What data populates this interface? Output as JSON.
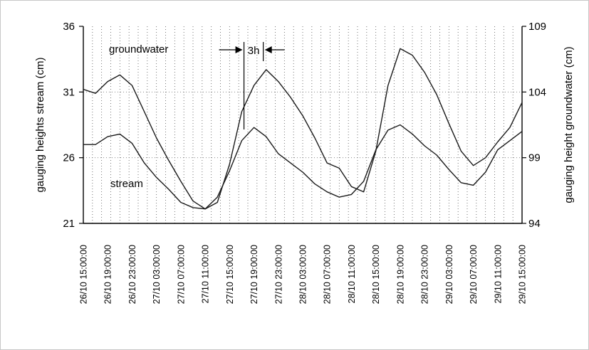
{
  "chart_data": {
    "type": "line",
    "title": "",
    "ylabel": "gauging heights stream (cm)",
    "ylabel_right": "gauging height groundwater (cm)",
    "ylim": [
      21,
      36
    ],
    "yticks": [
      "21",
      "26",
      "31",
      "36"
    ],
    "ylim_right": [
      94,
      109
    ],
    "yticks_right": [
      "94",
      "99",
      "104",
      "109"
    ],
    "xlim": [
      0,
      72
    ],
    "x_categories": [
      "26/10 15:00:00",
      "26/10 19:00:00",
      "26/10 23:00:00",
      "27/10 03:00:00",
      "27/10 07:00:00",
      "27/10 11:00:00",
      "27/10 15:00:00",
      "27/10 19:00:00",
      "27/10 23:00:00",
      "28/10 03:00:00",
      "28/10 07:00:00",
      "28/10 11:00:00",
      "28/10 15:00:00",
      "28/10 19:00:00",
      "28/10 23:00:00",
      "29/10 03:00:00",
      "29/10 07:00:00",
      "29/10 11:00:00",
      "29/10 15:00:00"
    ],
    "grid": "vertical dotted, horizontal dotted at 26 and 31",
    "annotation": "3h",
    "series": [
      {
        "name": "groundwater",
        "axis": "right",
        "x": [
          0,
          2,
          4,
          6,
          8,
          10,
          12,
          14,
          16,
          18,
          20,
          22,
          24,
          26,
          28,
          30,
          32,
          34,
          36,
          38,
          40,
          42,
          44,
          46,
          48,
          50,
          52,
          54,
          56,
          58,
          60,
          62,
          64,
          66,
          68,
          70,
          72
        ],
        "values": [
          104.2,
          103.9,
          104.8,
          105.3,
          104.5,
          102.5,
          100.5,
          98.8,
          97.2,
          95.7,
          95.1,
          95.6,
          98.5,
          102.5,
          104.5,
          105.7,
          104.8,
          103.6,
          102.2,
          100.5,
          98.6,
          98.2,
          96.8,
          96.4,
          99.5,
          104.5,
          107.3,
          106.8,
          105.5,
          103.8,
          101.6,
          99.5,
          98.4,
          99.0,
          100.2,
          101.3,
          103.2
        ]
      },
      {
        "name": "stream",
        "axis": "left",
        "x": [
          0,
          2,
          4,
          6,
          8,
          10,
          12,
          14,
          16,
          18,
          20,
          22,
          24,
          26,
          28,
          30,
          32,
          34,
          36,
          38,
          40,
          42,
          44,
          46,
          48,
          50,
          52,
          54,
          56,
          58,
          60,
          62,
          64,
          66,
          68,
          70,
          72
        ],
        "values": [
          27.0,
          27.0,
          27.6,
          27.8,
          27.1,
          25.6,
          24.5,
          23.6,
          22.6,
          22.2,
          22.1,
          23.0,
          25.0,
          27.3,
          28.3,
          27.6,
          26.3,
          25.6,
          24.9,
          24.0,
          23.4,
          23.0,
          23.2,
          24.2,
          26.6,
          28.1,
          28.5,
          27.8,
          26.9,
          26.2,
          25.1,
          24.1,
          23.9,
          24.9,
          26.6,
          27.3,
          28.0
        ]
      }
    ]
  }
}
